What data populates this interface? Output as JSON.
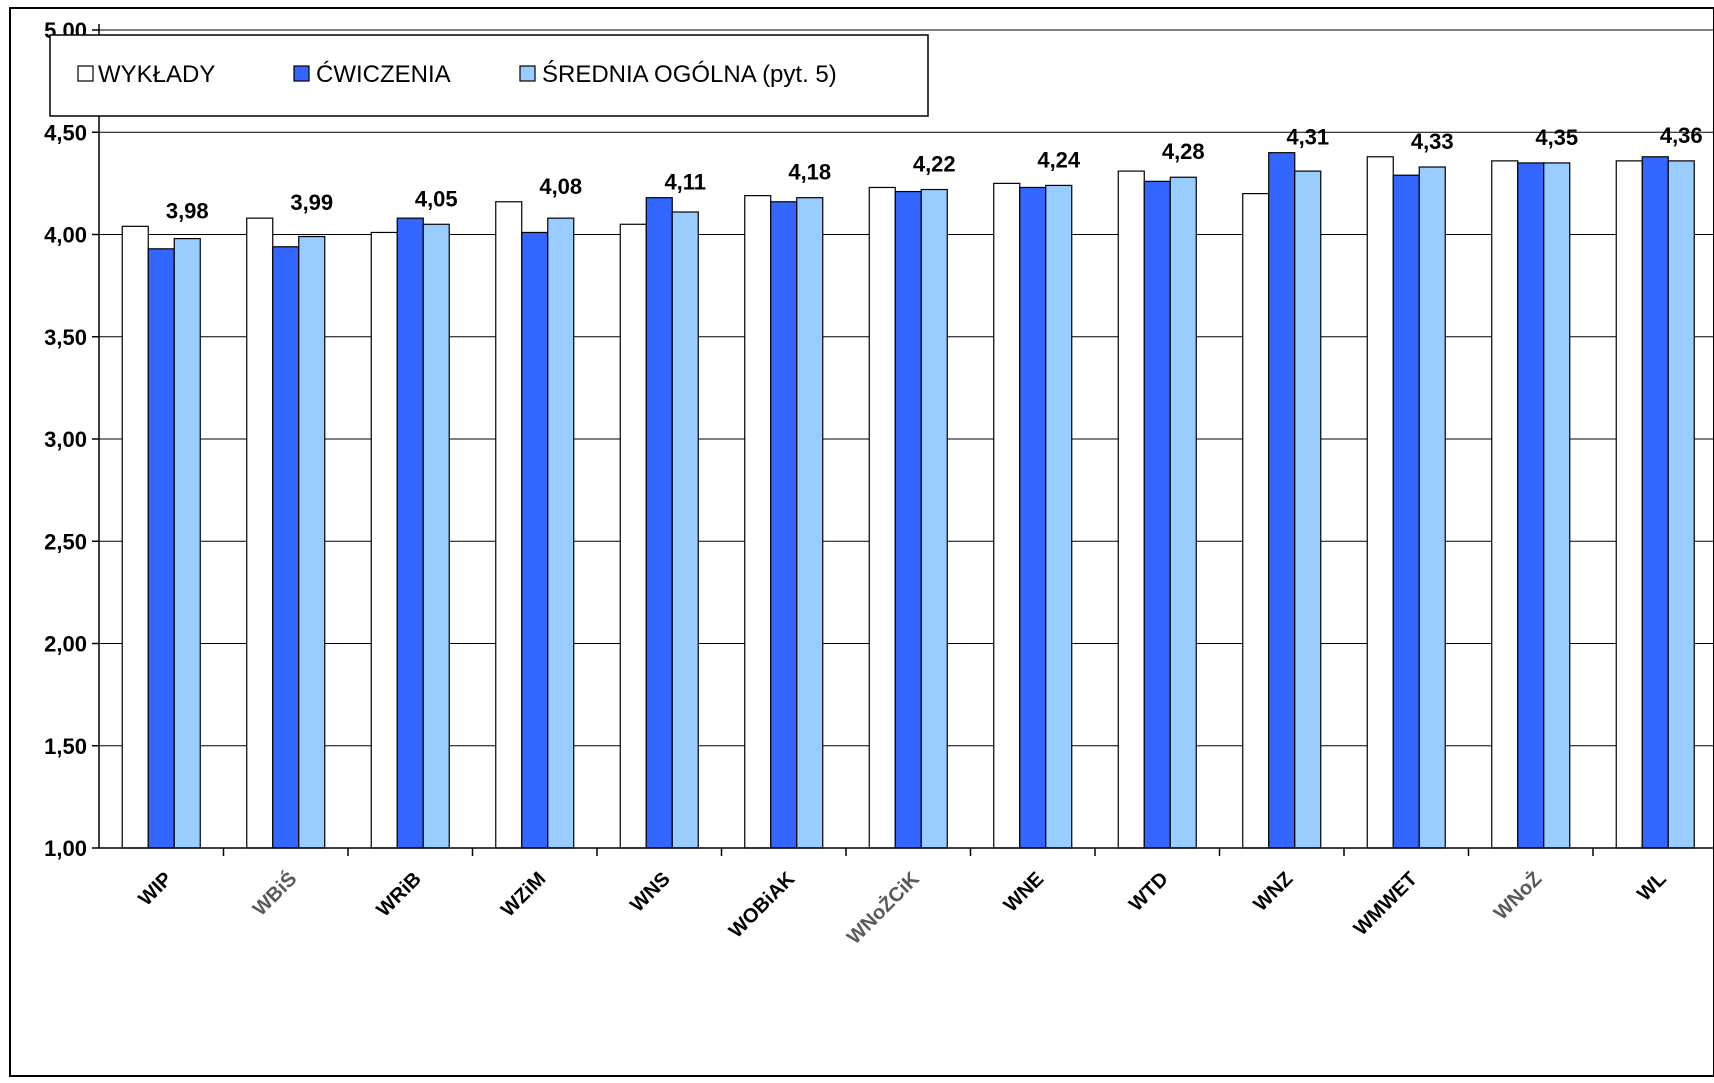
{
  "chart_data": {
    "type": "bar",
    "title": "",
    "xlabel": "",
    "ylabel": "",
    "ylim": [
      1.0,
      5.0
    ],
    "yticks": [
      "1,00",
      "1,50",
      "2,00",
      "2,50",
      "3,00",
      "3,50",
      "4,00",
      "4,50",
      "5,00"
    ],
    "grid": true,
    "legend_position": "top-left",
    "categories": [
      "WIP",
      "WBiŚ",
      "WRiB",
      "WZiM",
      "WNS",
      "WOBiAK",
      "WNoŻCiK",
      "WNE",
      "WTD",
      "WNZ",
      "WMWET",
      "WNoŻ",
      "WL"
    ],
    "series": [
      {
        "name": "WYKŁADY",
        "color": "#ffffff",
        "values": [
          4.04,
          4.08,
          4.01,
          4.16,
          4.05,
          4.19,
          4.23,
          4.25,
          4.31,
          4.2,
          4.38,
          4.36,
          4.36
        ]
      },
      {
        "name": "ĆWICZENIA",
        "color": "#3366ff",
        "values": [
          3.93,
          3.94,
          4.08,
          4.01,
          4.18,
          4.16,
          4.21,
          4.23,
          4.26,
          4.4,
          4.29,
          4.35,
          4.38
        ]
      },
      {
        "name": "ŚREDNIA OGÓLNA (pyt. 5)",
        "color": "#99ccff",
        "values": [
          3.98,
          3.99,
          4.05,
          4.08,
          4.11,
          4.18,
          4.22,
          4.24,
          4.28,
          4.31,
          4.33,
          4.35,
          4.36
        ]
      }
    ],
    "data_labels": [
      "3,98",
      "3,99",
      "4,05",
      "4,08",
      "4,11",
      "4,18",
      "4,22",
      "4,24",
      "4,28",
      "4,31",
      "4,33",
      "4,35",
      "4,36"
    ],
    "faded_category_labels": [
      "WBiŚ",
      "WNoŻCiK",
      "WNoŻ"
    ]
  }
}
